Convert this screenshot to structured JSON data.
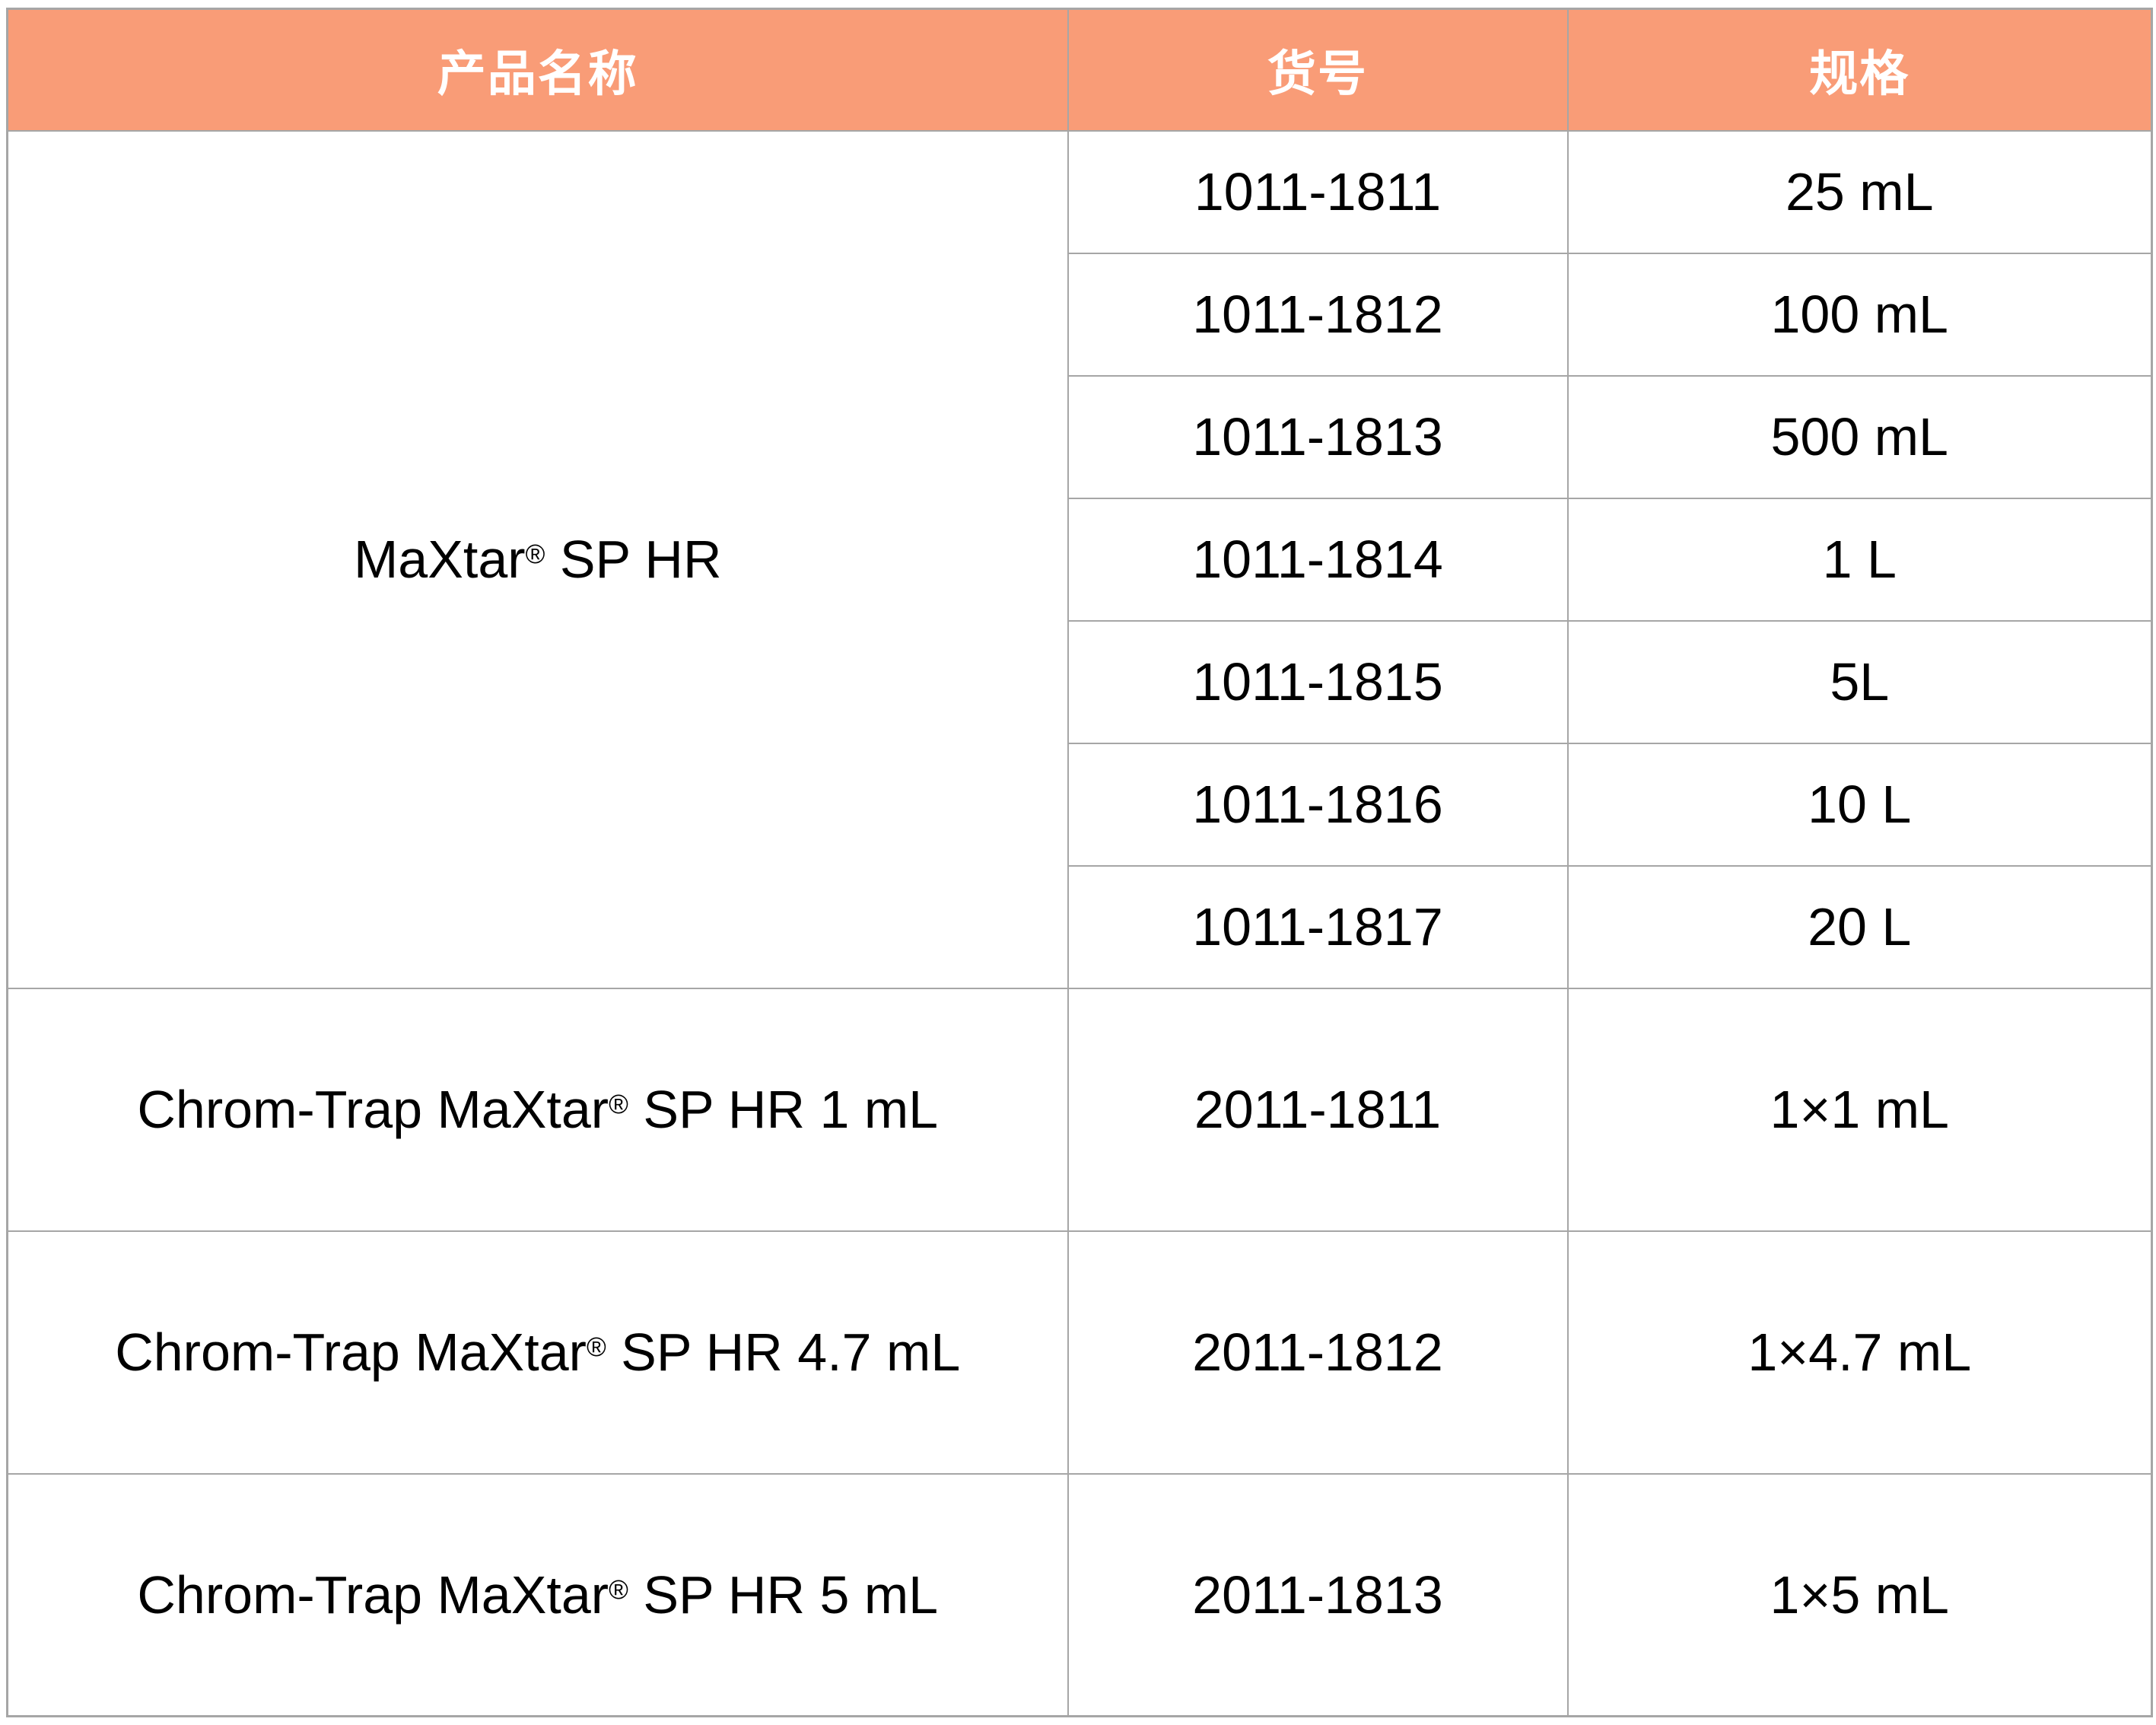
{
  "table": {
    "columns": [
      {
        "id": "product_name",
        "label": "产品名称"
      },
      {
        "id": "catalog_no",
        "label": "货号"
      },
      {
        "id": "spec",
        "label": "规格"
      }
    ],
    "style": {
      "header_bg": "#F99C77",
      "header_text_color": "#FFFFFF",
      "body_bg": "#FFFFFF",
      "body_text_color": "#000000",
      "border_color": "#A6A6A6"
    },
    "products": [
      {
        "name": "MaXtar® SP HR",
        "variants": [
          {
            "catalog": "1011-1811",
            "spec": "25 mL"
          },
          {
            "catalog": "1011-1812",
            "spec": "100 mL"
          },
          {
            "catalog": "1011-1813",
            "spec": "500 mL"
          },
          {
            "catalog": "1011-1814",
            "spec": "1 L"
          },
          {
            "catalog": "1011-1815",
            "spec": "5L"
          },
          {
            "catalog": "1011-1816",
            "spec": "10 L"
          },
          {
            "catalog": "1011-1817",
            "spec": "20 L"
          }
        ]
      },
      {
        "name": "Chrom-Trap MaXtar® SP HR 1 mL",
        "variants": [
          {
            "catalog": "2011-1811",
            "spec": "1×1 mL"
          }
        ]
      },
      {
        "name": "Chrom-Trap MaXtar® SP HR 4.7 mL",
        "variants": [
          {
            "catalog": "2011-1812",
            "spec": "1×4.7 mL"
          }
        ]
      },
      {
        "name": "Chrom-Trap MaXtar® SP HR 5 mL",
        "variants": [
          {
            "catalog": "2011-1813",
            "spec": "1×5 mL"
          }
        ]
      }
    ]
  }
}
